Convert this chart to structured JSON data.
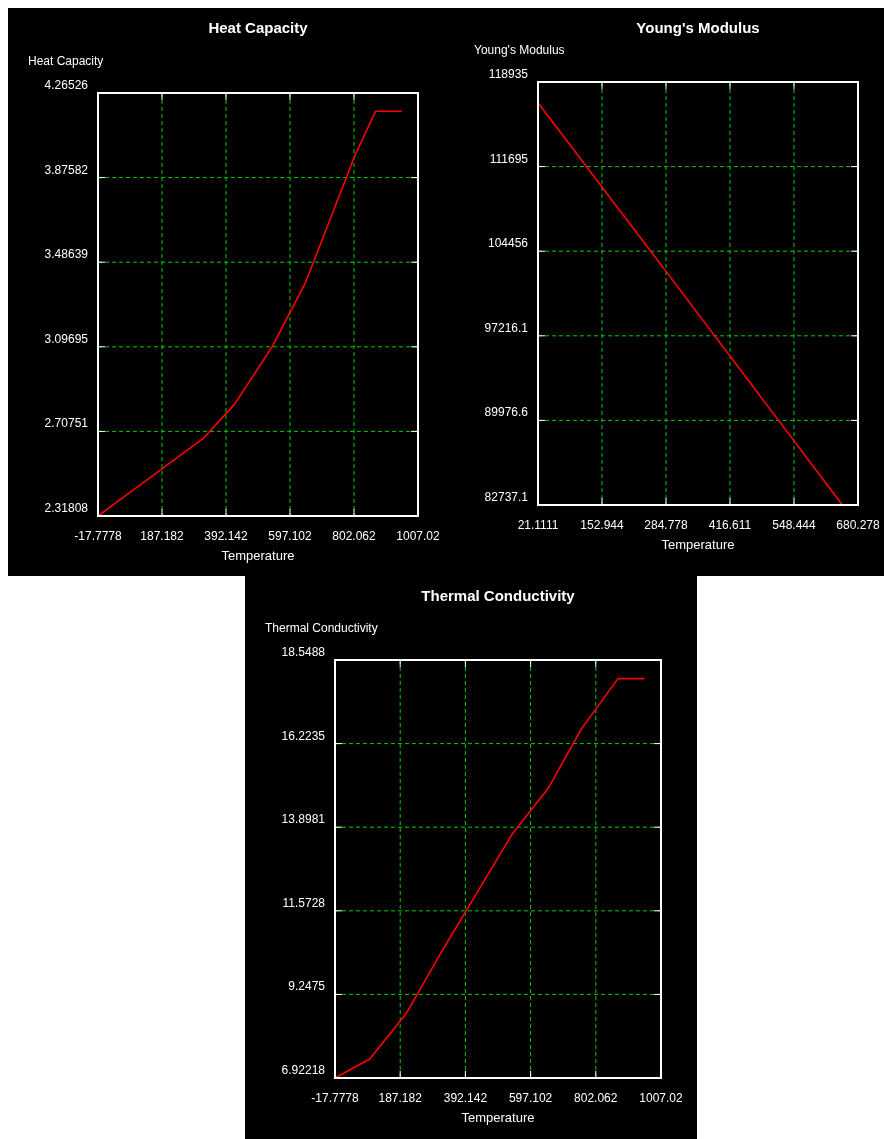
{
  "chart_data": [
    {
      "type": "line",
      "title": "Heat Capacity",
      "ylabel": "Heat Capacity",
      "xlabel": "Temperature",
      "grid": true,
      "x": [
        -17.7778,
        321.4,
        419.3,
        541,
        646.2,
        806,
        870.9,
        955.5
      ],
      "series": [
        {
          "color": "#ff0000",
          "values": [
            2.31808,
            2.678,
            2.832,
            3.1,
            3.391,
            3.981,
            4.181,
            4.181
          ]
        }
      ],
      "xlim": [
        -17.7778,
        1007.02
      ],
      "xticks": [
        -17.7778,
        187.182,
        392.142,
        597.102,
        802.062,
        1007.02
      ],
      "ylim": [
        2.31808,
        4.26526
      ],
      "yticks": [
        2.31808,
        2.70751,
        3.09695,
        3.48639,
        3.87582,
        4.26526
      ]
    },
    {
      "type": "line",
      "title": "Young's Modulus",
      "ylabel": "Young's Modulus",
      "xlabel": "Temperature",
      "grid": true,
      "x": [
        21.1111,
        284,
        646.6
      ],
      "series": [
        {
          "color": "#ff0000",
          "values": [
            117165,
            102773,
            82822
          ]
        }
      ],
      "xlim": [
        21.1111,
        680.278
      ],
      "xticks": [
        21.1111,
        152.944,
        284.778,
        416.611,
        548.444,
        680.278
      ],
      "ylim": [
        82737.1,
        118935
      ],
      "yticks": [
        82737.1,
        89976.6,
        97216.1,
        104456,
        111695,
        118935
      ]
    },
    {
      "type": "line",
      "title": "Thermal Conductivity",
      "ylabel": "Thermal Conductivity",
      "xlabel": "Temperature",
      "grid": true,
      "x": [
        -17.7778,
        91.5,
        205.9,
        315.1,
        538.8,
        653.2,
        757.3,
        871.7,
        955
      ],
      "series": [
        {
          "color": "#ff0000",
          "values": [
            6.92218,
            7.45,
            8.713,
            10.4,
            13.7,
            14.99,
            16.64,
            18.03,
            18.03
          ]
        }
      ],
      "xlim": [
        -17.7778,
        1007.02
      ],
      "xticks": [
        -17.7778,
        187.182,
        392.142,
        597.102,
        802.062,
        1007.02
      ],
      "ylim": [
        6.92218,
        18.5488
      ],
      "yticks": [
        6.92218,
        9.2475,
        11.5728,
        13.8981,
        16.2235,
        18.5488
      ]
    }
  ]
}
